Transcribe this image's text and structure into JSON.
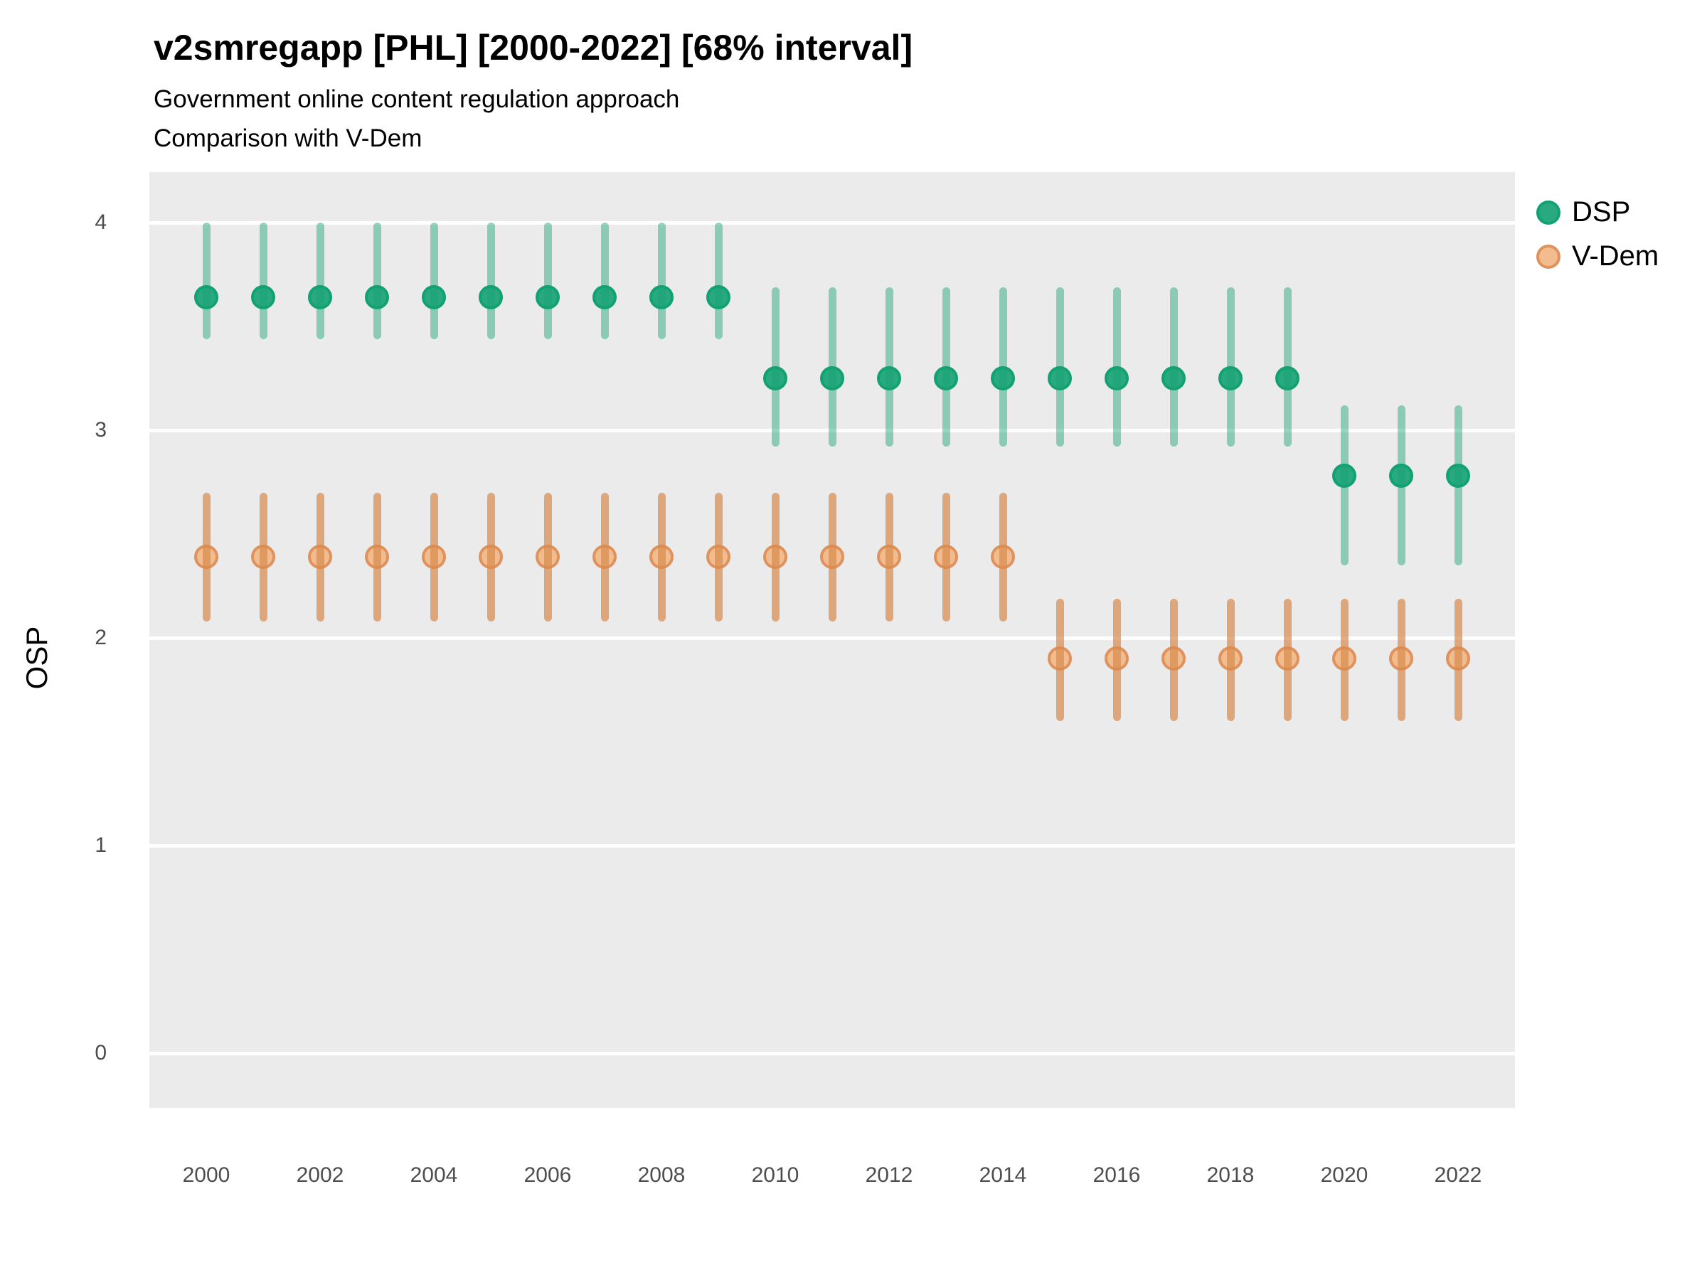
{
  "header": {
    "title": "v2smregapp [PHL] [2000-2022] [68% interval]",
    "subtitle_line1": "Government online content regulation approach",
    "subtitle_line2": "Comparison with V-Dem"
  },
  "axes": {
    "y_title": "OSP",
    "y_ticks": [
      0,
      1,
      2,
      3,
      4
    ],
    "x_ticks": [
      2000,
      2002,
      2004,
      2006,
      2008,
      2010,
      2012,
      2014,
      2016,
      2018,
      2020,
      2022
    ]
  },
  "legend": {
    "items": [
      {
        "label": "DSP",
        "fill": "#29a97f",
        "stroke": "#12a173"
      },
      {
        "label": "V-Dem",
        "fill": "#f2bc8e",
        "stroke": "#e0925c"
      }
    ]
  },
  "colors": {
    "panel_background": "#ebebeb",
    "gridline": "#ffffff",
    "dsp_bar": "rgba(23,161,115,0.45)",
    "vdem_bar": "rgba(217,138,76,0.7)"
  },
  "chart_data": {
    "type": "scatter",
    "subtype": "pointrange",
    "title": "v2smregapp [PHL] [2000-2022] [68% interval]",
    "subtitle": "Government online content regulation approach — Comparison with V-Dem",
    "interval": "68%",
    "xlabel": "",
    "ylabel": "OSP",
    "ylim": [
      -0.25,
      4.25
    ],
    "xlim": [
      1999,
      2023
    ],
    "grid": "horizontal-major",
    "legend_position": "right",
    "x": [
      2000,
      2001,
      2002,
      2003,
      2004,
      2005,
      2006,
      2007,
      2008,
      2009,
      2010,
      2011,
      2012,
      2013,
      2014,
      2015,
      2016,
      2017,
      2018,
      2019,
      2020,
      2021,
      2022
    ],
    "series": [
      {
        "name": "DSP",
        "fill": "#29a97f",
        "stroke": "#12a173",
        "bar": "rgba(23,161,115,0.45)",
        "est": [
          3.64,
          3.64,
          3.64,
          3.64,
          3.64,
          3.64,
          3.64,
          3.64,
          3.64,
          3.64,
          3.25,
          3.25,
          3.25,
          3.25,
          3.25,
          3.25,
          3.25,
          3.25,
          3.25,
          3.25,
          2.78,
          2.78,
          2.78
        ],
        "lo": [
          3.44,
          3.44,
          3.44,
          3.44,
          3.44,
          3.44,
          3.44,
          3.44,
          3.44,
          3.44,
          2.92,
          2.92,
          2.92,
          2.92,
          2.92,
          2.92,
          2.92,
          2.92,
          2.92,
          2.92,
          2.35,
          2.35,
          2.35
        ],
        "hi": [
          4.0,
          4.0,
          4.0,
          4.0,
          4.0,
          4.0,
          4.0,
          4.0,
          4.0,
          4.0,
          3.69,
          3.69,
          3.69,
          3.69,
          3.69,
          3.69,
          3.69,
          3.69,
          3.69,
          3.69,
          3.12,
          3.12,
          3.12
        ]
      },
      {
        "name": "V-Dem",
        "fill": "#f2bc8e",
        "stroke": "#e0925c",
        "bar": "rgba(217,138,76,0.7)",
        "est": [
          2.39,
          2.39,
          2.39,
          2.39,
          2.39,
          2.39,
          2.39,
          2.39,
          2.39,
          2.39,
          2.39,
          2.39,
          2.39,
          2.39,
          2.39,
          1.9,
          1.9,
          1.9,
          1.9,
          1.9,
          1.9,
          1.9,
          1.9
        ],
        "lo": [
          2.08,
          2.08,
          2.08,
          2.08,
          2.08,
          2.08,
          2.08,
          2.08,
          2.08,
          2.08,
          2.08,
          2.08,
          2.08,
          2.08,
          2.08,
          1.6,
          1.6,
          1.6,
          1.6,
          1.6,
          1.6,
          1.6,
          1.6
        ],
        "hi": [
          2.7,
          2.7,
          2.7,
          2.7,
          2.7,
          2.7,
          2.7,
          2.7,
          2.7,
          2.7,
          2.7,
          2.7,
          2.7,
          2.7,
          2.7,
          2.19,
          2.19,
          2.19,
          2.19,
          2.19,
          2.19,
          2.19,
          2.19
        ]
      }
    ]
  }
}
